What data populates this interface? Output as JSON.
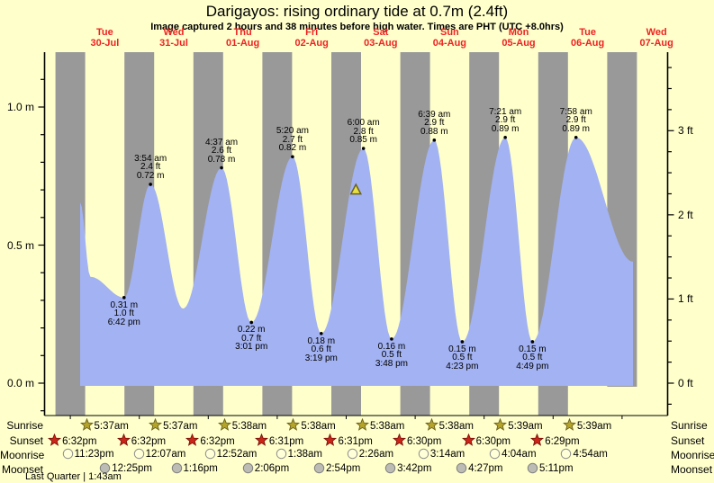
{
  "title": "Darigayos: rising  ordinary tide at 0.7m (2.4ft)",
  "subtitle": "Image captured 2 hours and 38 minutes before high water. Times are PHT (UTC +8.0hrs)",
  "days": [
    {
      "weekday": "Tue",
      "date": "30-Jul"
    },
    {
      "weekday": "Wed",
      "date": "31-Jul"
    },
    {
      "weekday": "Thu",
      "date": "01-Aug"
    },
    {
      "weekday": "Fri",
      "date": "02-Aug"
    },
    {
      "weekday": "Sat",
      "date": "03-Aug"
    },
    {
      "weekday": "Sun",
      "date": "04-Aug"
    },
    {
      "weekday": "Mon",
      "date": "05-Aug"
    },
    {
      "weekday": "Tue",
      "date": "06-Aug"
    },
    {
      "weekday": "Wed",
      "date": "07-Aug"
    }
  ],
  "colors": {
    "background": "#ffffcc",
    "night_band": "#999999",
    "tide_area": "#a2b2f2",
    "day_label": "#ee2222",
    "sunrise_star": "#b5a42c",
    "sunset_star": "#cc2518",
    "moonrise_circle": "#ffffd8",
    "moonset_circle": "#bcbcb4",
    "now_triangle": "#e8df45"
  },
  "y_axis_left": {
    "unit": "m",
    "labels": [
      {
        "text": "1.0 m",
        "value": 1.0
      },
      {
        "text": "0.5 m",
        "value": 0.5
      },
      {
        "text": "0.0 m",
        "value": 0.0
      }
    ]
  },
  "y_axis_right": {
    "unit": "ft",
    "labels": [
      {
        "text": "3 ft",
        "value": 3
      },
      {
        "text": "2 ft",
        "value": 2
      },
      {
        "text": "1 ft",
        "value": 1
      },
      {
        "text": "0 ft",
        "value": 0
      }
    ]
  },
  "chart_data": {
    "type": "area",
    "title": "Darigayos tide height over 9 days",
    "ylabel_left": "m",
    "ylabel_right": "ft",
    "y_range_m": [
      -0.12,
      1.2
    ],
    "grid": false,
    "tide_events": [
      {
        "day": 0,
        "type": "low",
        "time": "6:42 pm",
        "height_m": 0.31,
        "height_ft": 1.0
      },
      {
        "day": 1,
        "type": "high",
        "time": "3:54 am",
        "height_m": 0.72,
        "height_ft": 2.4
      },
      {
        "day": 2,
        "type": "high",
        "time": "4:37 am",
        "height_m": 0.78,
        "height_ft": 2.6
      },
      {
        "day": 2,
        "type": "low",
        "time": "3:01 pm",
        "height_m": 0.22,
        "height_ft": 0.7
      },
      {
        "day": 3,
        "type": "high",
        "time": "5:20 am",
        "height_m": 0.82,
        "height_ft": 2.7
      },
      {
        "day": 3,
        "type": "low",
        "time": "3:19 pm",
        "height_m": 0.18,
        "height_ft": 0.6
      },
      {
        "day": 4,
        "type": "high",
        "time": "6:00 am",
        "height_m": 0.85,
        "height_ft": 2.8
      },
      {
        "day": 4,
        "type": "low",
        "time": "3:48 pm",
        "height_m": 0.16,
        "height_ft": 0.5
      },
      {
        "day": 5,
        "type": "high",
        "time": "6:39 am",
        "height_m": 0.88,
        "height_ft": 2.9
      },
      {
        "day": 5,
        "type": "low",
        "time": "4:23 pm",
        "height_m": 0.15,
        "height_ft": 0.5
      },
      {
        "day": 6,
        "type": "high",
        "time": "7:21 am",
        "height_m": 0.89,
        "height_ft": 2.9
      },
      {
        "day": 6,
        "type": "low",
        "time": "4:49 pm",
        "height_m": 0.15,
        "height_ft": 0.5
      },
      {
        "day": 7,
        "type": "high",
        "time": "7:58 am",
        "height_m": 0.89,
        "height_ft": 2.9
      }
    ],
    "unannotated_low": {
      "day": 1,
      "hour": 15.25,
      "height_m": 0.27
    },
    "curve_start": {
      "day": 0,
      "hour": 3.42,
      "height_m": 0.655
    },
    "curve_end": {
      "day": 8,
      "hour": 3.8,
      "height_m": 0.44
    },
    "now_marker": {
      "day": 4,
      "hour": 3.37,
      "height_m": 0.7
    }
  },
  "astro": {
    "rows": [
      {
        "name": "Sunrise",
        "icon": "sunrise-star",
        "times": [
          "5:37am",
          "5:37am",
          "5:38am",
          "5:38am",
          "5:38am",
          "5:38am",
          "5:39am",
          "5:39am"
        ]
      },
      {
        "name": "Sunset",
        "icon": "sunset-star",
        "times": [
          "6:32pm",
          "6:32pm",
          "6:32pm",
          "6:31pm",
          "6:31pm",
          "6:30pm",
          "6:30pm",
          "6:29pm"
        ]
      },
      {
        "name": "Moonrise",
        "icon": "moonrise-circle",
        "times": [
          "11:23pm",
          "12:07am",
          "12:52am",
          "1:38am",
          "2:26am",
          "3:14am",
          "4:04am",
          "4:54am"
        ]
      },
      {
        "name": "Moonset",
        "icon": "moonset-circle",
        "times": [
          "12:25pm",
          "1:16pm",
          "2:06pm",
          "2:54pm",
          "3:42pm",
          "4:27pm",
          "5:11pm"
        ]
      }
    ],
    "footnote": "Last Quarter | 1:43am"
  }
}
